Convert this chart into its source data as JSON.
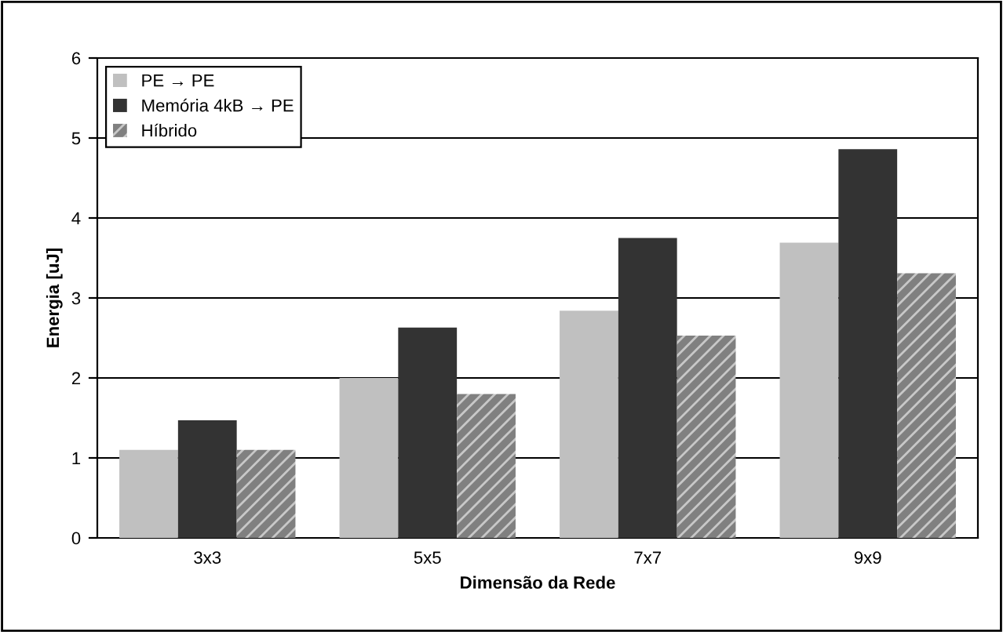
{
  "chart_data": {
    "type": "bar",
    "xlabel": "Dimensão da Rede",
    "ylabel": "Energia [uJ]",
    "categories": [
      "3x3",
      "5x5",
      "7x7",
      "9x9"
    ],
    "series": [
      {
        "name": "PE → PE",
        "color": "#c0c0c0",
        "values": [
          1.1,
          2.0,
          2.84,
          3.69
        ]
      },
      {
        "name": "Memória 4kB → PE",
        "color": "#333333",
        "values": [
          1.47,
          2.63,
          3.75,
          4.86
        ]
      },
      {
        "name": "Híbrido",
        "color": "#808080",
        "values": [
          1.1,
          1.8,
          2.53,
          3.31
        ]
      }
    ],
    "ylim": [
      0,
      6
    ],
    "yticks": [
      0,
      1,
      2,
      3,
      4,
      5,
      6
    ],
    "grid": "y",
    "legend": "top left"
  }
}
